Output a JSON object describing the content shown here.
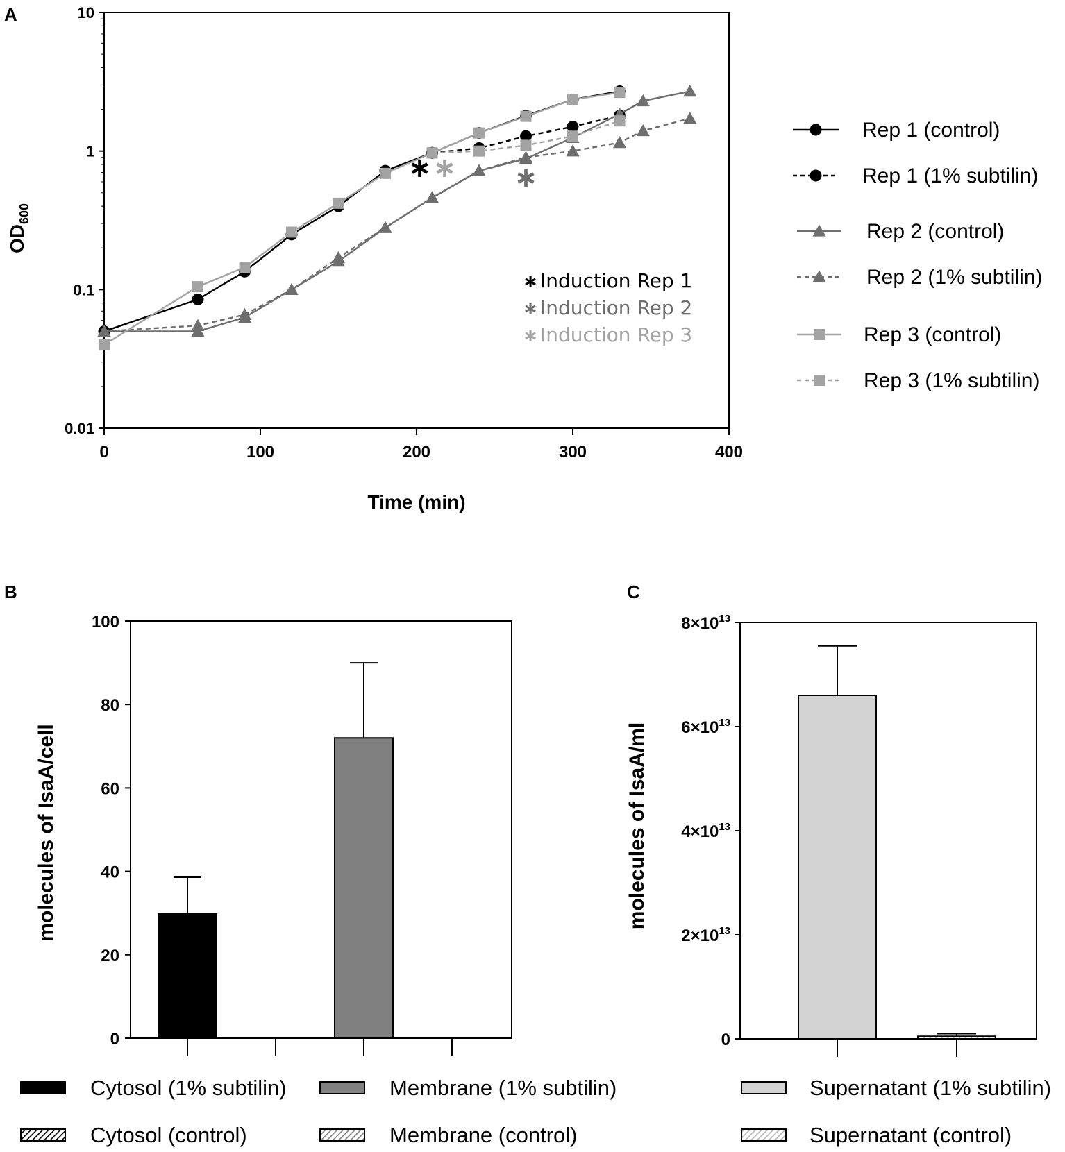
{
  "chart_data": [
    {
      "panel": "A",
      "type": "line",
      "xlabel": "Time (min)",
      "ylabel": "OD",
      "ylabel_sub": "600",
      "yscale": "log",
      "xlim": [
        0,
        400
      ],
      "ylim": [
        0.01,
        10
      ],
      "xticks": [
        0,
        100,
        200,
        300,
        400
      ],
      "xtick_labels": [
        "0",
        "100",
        "200",
        "300",
        "400"
      ],
      "yticks": [
        0.01,
        0.1,
        1,
        10
      ],
      "ytick_labels": [
        "0.01",
        "0.1",
        "1",
        "10"
      ],
      "series": [
        {
          "name": "Rep 1 (control)",
          "marker": "circle",
          "dash": false,
          "color": "#000000",
          "points": [
            [
              0,
              0.05
            ],
            [
              60,
              0.085
            ],
            [
              90,
              0.135
            ],
            [
              120,
              0.25
            ],
            [
              150,
              0.4
            ],
            [
              180,
              0.72
            ],
            [
              210,
              0.97
            ],
            [
              240,
              1.35
            ],
            [
              270,
              1.8
            ],
            [
              300,
              2.35
            ],
            [
              330,
              2.7
            ]
          ]
        },
        {
          "name": "Rep 1 (1% subtilin)",
          "marker": "circle",
          "dash": true,
          "color": "#000000",
          "points": [
            [
              210,
              0.97
            ],
            [
              240,
              1.05
            ],
            [
              270,
              1.28
            ],
            [
              300,
              1.5
            ],
            [
              330,
              1.8
            ]
          ]
        },
        {
          "name": "Rep 2 (control)",
          "marker": "triangle",
          "dash": false,
          "color": "#6e6e6e",
          "points": [
            [
              0,
              0.05
            ],
            [
              60,
              0.05
            ],
            [
              90,
              0.063
            ],
            [
              120,
              0.1
            ],
            [
              150,
              0.16
            ],
            [
              180,
              0.28
            ],
            [
              210,
              0.46
            ],
            [
              240,
              0.72
            ],
            [
              270,
              0.88
            ],
            [
              300,
              1.25
            ],
            [
              330,
              1.85
            ],
            [
              345,
              2.3
            ],
            [
              375,
              2.7
            ]
          ]
        },
        {
          "name": "Rep 2 (1% subtilin)",
          "marker": "triangle",
          "dash": true,
          "color": "#6e6e6e",
          "points": [
            [
              0,
              0.05
            ],
            [
              60,
              0.055
            ],
            [
              90,
              0.066
            ],
            [
              120,
              0.1
            ],
            [
              150,
              0.17
            ],
            [
              180,
              0.28
            ],
            [
              210,
              0.46
            ],
            [
              240,
              0.72
            ],
            [
              270,
              0.9
            ],
            [
              300,
              1.0
            ],
            [
              330,
              1.15
            ],
            [
              345,
              1.4
            ],
            [
              375,
              1.72
            ]
          ]
        },
        {
          "name": "Rep 3 (control)",
          "marker": "square",
          "dash": false,
          "color": "#a3a3a3",
          "points": [
            [
              0,
              0.04
            ],
            [
              60,
              0.105
            ],
            [
              90,
              0.145
            ],
            [
              120,
              0.26
            ],
            [
              150,
              0.42
            ],
            [
              180,
              0.69
            ],
            [
              210,
              0.97
            ],
            [
              240,
              1.35
            ],
            [
              270,
              1.78
            ],
            [
              300,
              2.35
            ],
            [
              330,
              2.65
            ]
          ]
        },
        {
          "name": "Rep 3 (1% subtilin)",
          "marker": "square",
          "dash": true,
          "color": "#a3a3a3",
          "points": [
            [
              210,
              0.97
            ],
            [
              240,
              1.0
            ],
            [
              270,
              1.1
            ],
            [
              300,
              1.28
            ],
            [
              330,
              1.65
            ]
          ]
        }
      ],
      "induction_markers": [
        {
          "label": "Induction Rep 1",
          "x": 202,
          "y": 0.8,
          "color": "#000000"
        },
        {
          "label": "Induction Rep 2",
          "x": 270,
          "y": 0.68,
          "color": "#6e6e6e"
        },
        {
          "label": "Induction Rep 3",
          "x": 218,
          "y": 0.8,
          "color": "#a3a3a3"
        }
      ],
      "annotation_symbol": "∗"
    },
    {
      "panel": "B",
      "type": "bar",
      "ylabel": "molecules of IsaA/cell",
      "ylim": [
        0,
        100
      ],
      "yticks": [
        0,
        20,
        40,
        60,
        80,
        100
      ],
      "ytick_labels": [
        "0",
        "20",
        "40",
        "60",
        "80",
        "100"
      ],
      "bars": [
        {
          "name": "Cytosol (1% subtilin)",
          "value": 29.8,
          "error": 8.8,
          "fill": "#000000",
          "hatched": false
        },
        {
          "name": "Cytosol (control)",
          "value": 0,
          "error": 0,
          "fill": "#000000",
          "hatched": true
        },
        {
          "name": "Membrane (1% subtilin)",
          "value": 72,
          "error": 18,
          "fill": "#808080",
          "hatched": false
        },
        {
          "name": "Membrane (control)",
          "value": 0,
          "error": 0,
          "fill": "#808080",
          "hatched": true
        }
      ]
    },
    {
      "panel": "C",
      "type": "bar",
      "ylabel": "molecules of IsaA/ml",
      "ylim": [
        0,
        80000000000000.0
      ],
      "yticks": [
        0,
        20000000000000.0,
        40000000000000.0,
        60000000000000.0,
        80000000000000.0
      ],
      "ytick_labels": [
        {
          "base": "0",
          "exp": ""
        },
        {
          "base": "2×10",
          "exp": "13"
        },
        {
          "base": "4×10",
          "exp": "13"
        },
        {
          "base": "6×10",
          "exp": "13"
        },
        {
          "base": "8×10",
          "exp": "13"
        }
      ],
      "bars": [
        {
          "name": "Supernatant (1% subtilin)",
          "value": 66000000000000.0,
          "error": 9500000000000.0,
          "fill": "#d3d3d3",
          "hatched": false
        },
        {
          "name": "Supernatant (control)",
          "value": 500000000000.0,
          "error": 500000000000.0,
          "fill": "#d3d3d3",
          "hatched": true
        }
      ]
    }
  ],
  "panel_labels": {
    "a": "A",
    "b": "B",
    "c": "C"
  }
}
